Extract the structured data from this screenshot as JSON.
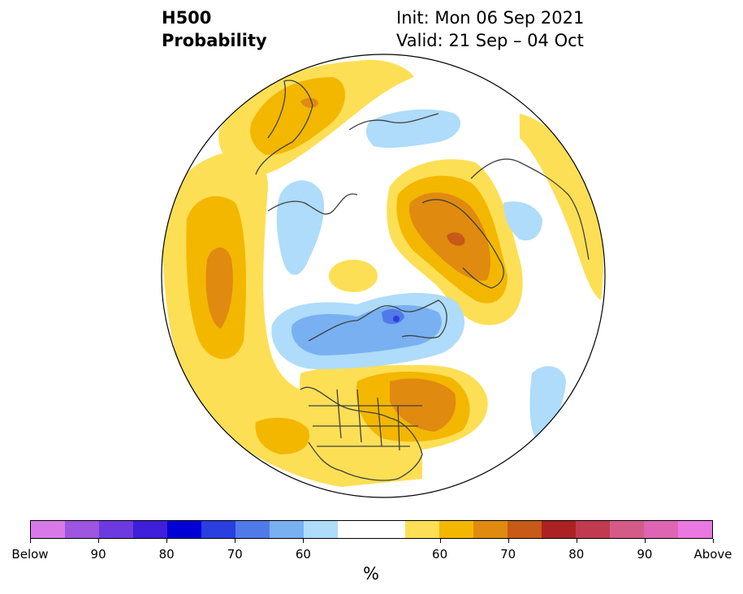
{
  "header": {
    "field_name": "H500",
    "field_type": "Probability",
    "init": "Init: Mon 06 Sep 2021",
    "valid": "Valid: 21 Sep – 04 Oct"
  },
  "colorbar": {
    "colors": [
      "#d77ae8",
      "#9e55e0",
      "#6d3ae0",
      "#3f1fd9",
      "#0000d6",
      "#2a3fe0",
      "#4f7ae8",
      "#78b0f2",
      "#aedcfa",
      "#ffffff",
      "#ffffff",
      "#fddf55",
      "#f3b700",
      "#e08a10",
      "#c65a16",
      "#ac2224",
      "#c23a50",
      "#d45a88",
      "#de65b2",
      "#ea78e0"
    ],
    "labels": [
      "Below",
      "90",
      "80",
      "70",
      "60",
      "60",
      "70",
      "80",
      "90",
      "Above"
    ],
    "unit": "%"
  },
  "palette": {
    "above_light": "#fddf55",
    "above_mid": "#f3b700",
    "above_strong": "#e08a10",
    "below_light": "#aedcfa",
    "below_mid": "#78b0f2",
    "below_strong": "#4f7ae8",
    "below_deep": "#2a3fe0"
  }
}
